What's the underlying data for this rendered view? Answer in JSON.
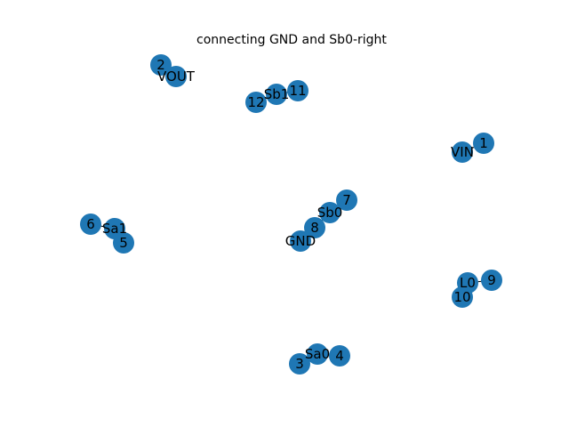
{
  "title": "connecting GND and Sb0-right",
  "colors": {
    "node": "#1f77b4",
    "edge": "#000000",
    "label": "#000000"
  },
  "graph": {
    "nodes": [
      {
        "id": "VOUT",
        "label": "VOUT"
      },
      {
        "id": "2",
        "label": "2"
      },
      {
        "id": "Sb1",
        "label": "Sb1"
      },
      {
        "id": "12",
        "label": "12"
      },
      {
        "id": "11",
        "label": "11"
      },
      {
        "id": "VIN",
        "label": "VIN"
      },
      {
        "id": "1",
        "label": "1"
      },
      {
        "id": "Sb0",
        "label": "Sb0"
      },
      {
        "id": "7",
        "label": "7"
      },
      {
        "id": "8",
        "label": "8"
      },
      {
        "id": "GND",
        "label": "GND"
      },
      {
        "id": "Sa1",
        "label": "Sa1"
      },
      {
        "id": "6",
        "label": "6"
      },
      {
        "id": "5",
        "label": "5"
      },
      {
        "id": "L0",
        "label": "L0"
      },
      {
        "id": "9",
        "label": "9"
      },
      {
        "id": "10",
        "label": "10"
      },
      {
        "id": "Sa0",
        "label": "Sa0"
      },
      {
        "id": "4",
        "label": "4"
      },
      {
        "id": "3",
        "label": "3"
      }
    ],
    "edges": [
      [
        "VOUT",
        "2"
      ],
      [
        "Sb1",
        "12"
      ],
      [
        "Sb1",
        "11"
      ],
      [
        "VIN",
        "1"
      ],
      [
        "Sb0",
        "7"
      ],
      [
        "Sb0",
        "8"
      ],
      [
        "8",
        "GND"
      ],
      [
        "Sa1",
        "6"
      ],
      [
        "Sa1",
        "5"
      ],
      [
        "L0",
        "9"
      ],
      [
        "L0",
        "10"
      ],
      [
        "Sa0",
        "4"
      ],
      [
        "Sa0",
        "3"
      ]
    ]
  }
}
